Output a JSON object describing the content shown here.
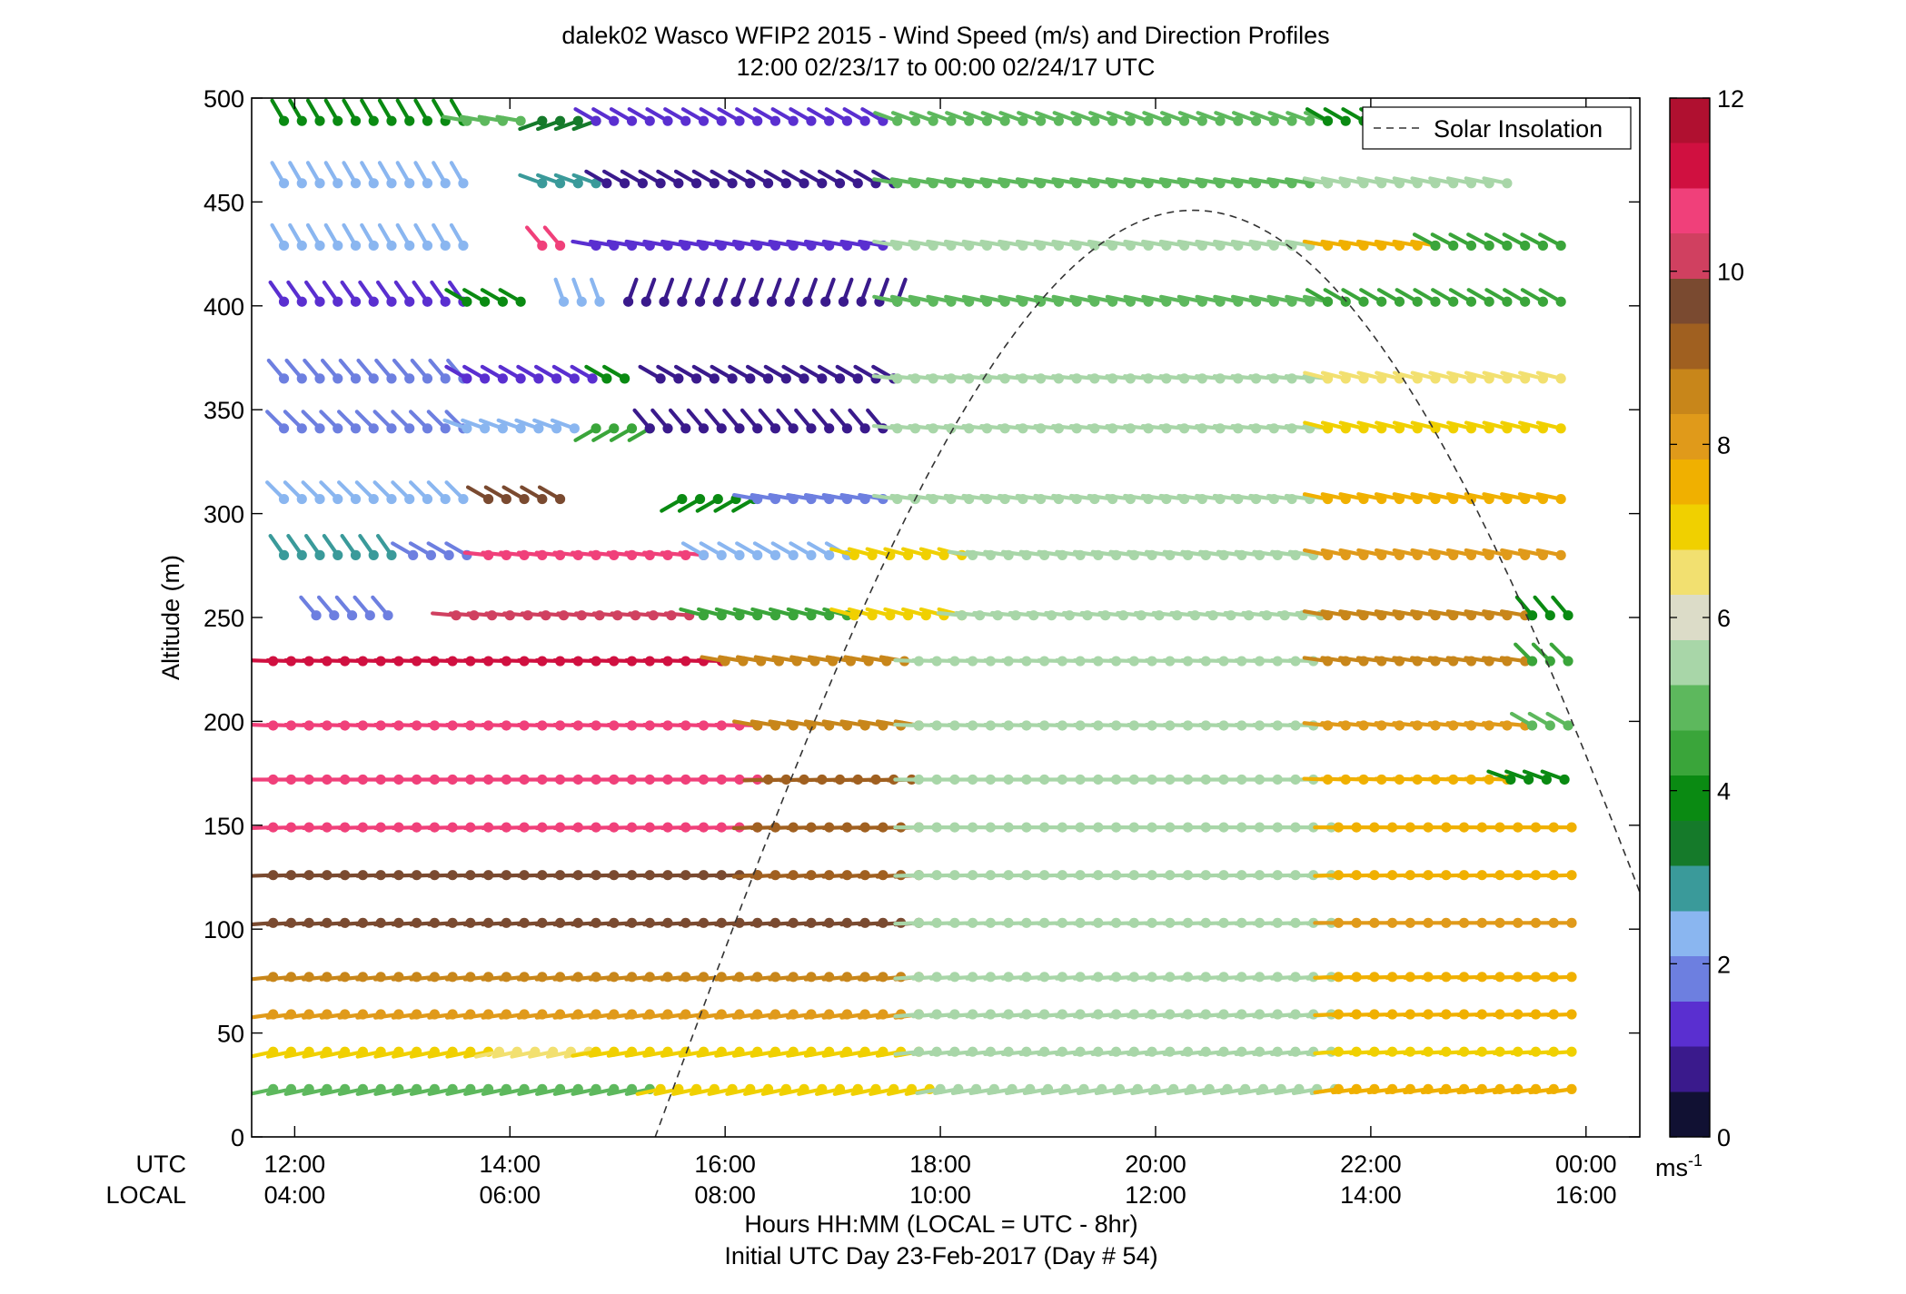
{
  "chart_data": {
    "type": "wind-barb-profile",
    "title": "dalek02 Wasco WFIP2 2015 - Wind Speed (m/s) and Direction Profiles",
    "subtitle": "12:00 02/23/17 to 00:00 02/24/17  UTC",
    "ylabel": "Altitude (m)",
    "xlabel": "Hours HH:MM  (LOCAL = UTC - 8hr)",
    "xlabel2": "Initial UTC Day 23-Feb-2017 (Day # 54)",
    "row_utc": "UTC",
    "row_local": "LOCAL",
    "ylim": [
      0,
      500
    ],
    "xlim_hours": [
      11.6,
      24.5
    ],
    "y_ticks": [
      "0",
      "50",
      "100",
      "150",
      "200",
      "250",
      "300",
      "350",
      "400",
      "450",
      "500"
    ],
    "x_ticks_utc": [
      "12:00",
      "14:00",
      "16:00",
      "18:00",
      "20:00",
      "22:00",
      "00:00"
    ],
    "x_ticks_local": [
      "04:00",
      "06:00",
      "08:00",
      "10:00",
      "12:00",
      "14:00",
      "16:00"
    ],
    "colorbar": {
      "min": 0,
      "max": 12,
      "ticks": [
        "0",
        "2",
        "4",
        "6",
        "8",
        "10",
        "12"
      ],
      "unit_base": "ms",
      "unit_exp": "-1",
      "stops": [
        "#111133",
        "#3a1a8c",
        "#5a2fd0",
        "#6d7fe0",
        "#8ab6f0",
        "#3a9a9a",
        "#157a2a",
        "#0a8a12",
        "#3aa53a",
        "#5db85d",
        "#a8d6a8",
        "#dcdcc8",
        "#f2e070",
        "#f0d000",
        "#f0b000",
        "#e09a1a",
        "#c8861a",
        "#a06020",
        "#7a4a30",
        "#d04060",
        "#f0407a",
        "#d01040",
        "#b01030"
      ]
    },
    "legend": {
      "label": "Solar Insolation",
      "placement": "top-right"
    },
    "solar_insolation": {
      "rise_hour": 15.35,
      "peak_hour": 20.35,
      "peak_altitude": 446,
      "end_hour": 24.5,
      "end_altitude": 105
    },
    "altitudes": [
      23,
      41,
      59,
      77,
      103,
      126,
      149,
      172,
      198,
      229,
      251,
      280,
      307,
      341,
      365,
      402,
      429,
      459,
      489
    ],
    "series": [
      {
        "altitude": 23,
        "segments": [
          {
            "from": 11.8,
            "to": 15.4,
            "speed": 5.0,
            "dir": 258
          },
          {
            "from": 15.4,
            "to": 18.0,
            "speed": 6.8,
            "dir": 258
          },
          {
            "from": 18.0,
            "to": 21.7,
            "speed": 5.3,
            "dir": 260
          },
          {
            "from": 21.7,
            "to": 23.9,
            "speed": 7.4,
            "dir": 262
          }
        ]
      },
      {
        "altitude": 41,
        "segments": [
          {
            "from": 11.8,
            "to": 13.9,
            "speed": 6.9,
            "dir": 258
          },
          {
            "from": 13.9,
            "to": 14.8,
            "speed": 6.3,
            "dir": 258
          },
          {
            "from": 14.8,
            "to": 17.8,
            "speed": 7.1,
            "dir": 260
          },
          {
            "from": 17.8,
            "to": 21.7,
            "speed": 5.4,
            "dir": 264
          },
          {
            "from": 21.7,
            "to": 23.9,
            "speed": 7.3,
            "dir": 266
          }
        ]
      },
      {
        "altitude": 59,
        "segments": [
          {
            "from": 11.8,
            "to": 17.8,
            "speed": 8.1,
            "dir": 262
          },
          {
            "from": 17.8,
            "to": 21.7,
            "speed": 5.3,
            "dir": 265
          },
          {
            "from": 21.7,
            "to": 23.9,
            "speed": 7.5,
            "dir": 268
          }
        ]
      },
      {
        "altitude": 77,
        "segments": [
          {
            "from": 11.8,
            "to": 17.8,
            "speed": 8.6,
            "dir": 264
          },
          {
            "from": 17.8,
            "to": 21.7,
            "speed": 5.4,
            "dir": 266
          },
          {
            "from": 21.7,
            "to": 23.9,
            "speed": 7.6,
            "dir": 268
          }
        ]
      },
      {
        "altitude": 103,
        "segments": [
          {
            "from": 11.8,
            "to": 17.8,
            "speed": 9.4,
            "dir": 266
          },
          {
            "from": 17.8,
            "to": 21.7,
            "speed": 5.5,
            "dir": 268
          },
          {
            "from": 21.7,
            "to": 23.9,
            "speed": 8.1,
            "dir": 270
          }
        ]
      },
      {
        "altitude": 126,
        "segments": [
          {
            "from": 11.8,
            "to": 16.3,
            "speed": 9.6,
            "dir": 268
          },
          {
            "from": 16.3,
            "to": 17.8,
            "speed": 9.0,
            "dir": 266
          },
          {
            "from": 17.8,
            "to": 21.7,
            "speed": 5.4,
            "dir": 268
          },
          {
            "from": 21.7,
            "to": 23.9,
            "speed": 7.8,
            "dir": 268
          }
        ]
      },
      {
        "altitude": 149,
        "segments": [
          {
            "from": 11.8,
            "to": 16.3,
            "speed": 10.5,
            "dir": 268
          },
          {
            "from": 16.3,
            "to": 17.8,
            "speed": 9.0,
            "dir": 268
          },
          {
            "from": 17.8,
            "to": 21.7,
            "speed": 5.5,
            "dir": 270
          },
          {
            "from": 21.7,
            "to": 23.9,
            "speed": 7.8,
            "dir": 270
          }
        ]
      },
      {
        "altitude": 172,
        "segments": [
          {
            "from": 11.8,
            "to": 16.4,
            "speed": 10.7,
            "dir": 270
          },
          {
            "from": 16.4,
            "to": 17.8,
            "speed": 8.9,
            "dir": 268
          },
          {
            "from": 17.8,
            "to": 21.6,
            "speed": 5.5,
            "dir": 270
          },
          {
            "from": 21.6,
            "to": 23.3,
            "speed": 7.8,
            "dir": 272
          },
          {
            "from": 23.3,
            "to": 23.9,
            "speed": 4.0,
            "dir": 290
          }
        ]
      },
      {
        "altitude": 198,
        "segments": [
          {
            "from": 11.8,
            "to": 16.3,
            "speed": 10.8,
            "dir": 272
          },
          {
            "from": 16.3,
            "to": 17.8,
            "speed": 8.5,
            "dir": 280
          },
          {
            "from": 17.8,
            "to": 21.6,
            "speed": 5.5,
            "dir": 272
          },
          {
            "from": 21.6,
            "to": 23.5,
            "speed": 8.1,
            "dir": 276
          },
          {
            "from": 23.5,
            "to": 23.9,
            "speed": 5.0,
            "dir": 300
          }
        ]
      },
      {
        "altitude": 229,
        "segments": [
          {
            "from": 11.8,
            "to": 16.0,
            "speed": 11.2,
            "dir": 272
          },
          {
            "from": 16.0,
            "to": 17.8,
            "speed": 8.6,
            "dir": 280
          },
          {
            "from": 17.8,
            "to": 21.6,
            "speed": 5.5,
            "dir": 272
          },
          {
            "from": 21.6,
            "to": 23.5,
            "speed": 8.5,
            "dir": 278
          },
          {
            "from": 23.5,
            "to": 23.9,
            "speed": 4.5,
            "dir": 315
          }
        ]
      },
      {
        "altitude": 251,
        "segments": [
          {
            "from": 12.2,
            "to": 12.9,
            "speed": 2.0,
            "dir": 320
          },
          {
            "from": 13.5,
            "to": 15.8,
            "speed": 10.4,
            "dir": 275
          },
          {
            "from": 15.8,
            "to": 17.2,
            "speed": 4.6,
            "dir": 285
          },
          {
            "from": 17.2,
            "to": 18.2,
            "speed": 6.9,
            "dir": 285
          },
          {
            "from": 18.2,
            "to": 21.6,
            "speed": 5.4,
            "dir": 276
          },
          {
            "from": 21.6,
            "to": 23.5,
            "speed": 8.8,
            "dir": 280
          },
          {
            "from": 23.5,
            "to": 23.9,
            "speed": 4.0,
            "dir": 320
          }
        ]
      },
      {
        "altitude": 280,
        "segments": [
          {
            "from": 11.9,
            "to": 12.9,
            "speed": 2.8,
            "dir": 325
          },
          {
            "from": 13.1,
            "to": 13.6,
            "speed": 2.0,
            "dir": 300
          },
          {
            "from": 13.8,
            "to": 15.8,
            "speed": 10.8,
            "dir": 276
          },
          {
            "from": 15.8,
            "to": 17.2,
            "speed": 2.6,
            "dir": 300
          },
          {
            "from": 17.2,
            "to": 18.3,
            "speed": 6.8,
            "dir": 285
          },
          {
            "from": 18.3,
            "to": 21.6,
            "speed": 5.5,
            "dir": 278
          },
          {
            "from": 21.6,
            "to": 23.9,
            "speed": 8.2,
            "dir": 282
          }
        ]
      },
      {
        "altitude": 307,
        "segments": [
          {
            "from": 11.9,
            "to": 13.6,
            "speed": 2.3,
            "dir": 315
          },
          {
            "from": 13.8,
            "to": 14.6,
            "speed": 9.9,
            "dir": 300
          },
          {
            "from": 15.6,
            "to": 16.3,
            "speed": 4.0,
            "dir": 240
          },
          {
            "from": 16.3,
            "to": 17.6,
            "speed": 2.0,
            "dir": 280
          },
          {
            "from": 17.6,
            "to": 21.6,
            "speed": 5.5,
            "dir": 278
          },
          {
            "from": 21.6,
            "to": 23.9,
            "speed": 7.5,
            "dir": 282
          }
        ]
      },
      {
        "altitude": 341,
        "segments": [
          {
            "from": 11.9,
            "to": 13.6,
            "speed": 1.9,
            "dir": 315
          },
          {
            "from": 13.6,
            "to": 14.6,
            "speed": 2.2,
            "dir": 290
          },
          {
            "from": 14.8,
            "to": 15.3,
            "speed": 4.2,
            "dir": 240
          },
          {
            "from": 15.3,
            "to": 17.6,
            "speed": 1.0,
            "dir": 320
          },
          {
            "from": 17.6,
            "to": 21.6,
            "speed": 5.5,
            "dir": 276
          },
          {
            "from": 21.6,
            "to": 23.9,
            "speed": 7.2,
            "dir": 284
          }
        ]
      },
      {
        "altitude": 365,
        "segments": [
          {
            "from": 11.9,
            "to": 13.6,
            "speed": 1.8,
            "dir": 320
          },
          {
            "from": 13.6,
            "to": 14.9,
            "speed": 1.5,
            "dir": 300
          },
          {
            "from": 14.9,
            "to": 15.2,
            "speed": 4.0,
            "dir": 300
          },
          {
            "from": 15.4,
            "to": 17.6,
            "speed": 0.7,
            "dir": 300
          },
          {
            "from": 17.6,
            "to": 21.6,
            "speed": 5.5,
            "dir": 276
          },
          {
            "from": 21.6,
            "to": 23.9,
            "speed": 6.5,
            "dir": 284
          }
        ]
      },
      {
        "altitude": 402,
        "segments": [
          {
            "from": 11.9,
            "to": 13.6,
            "speed": 1.5,
            "dir": 325
          },
          {
            "from": 13.6,
            "to": 14.1,
            "speed": 3.9,
            "dir": 300
          },
          {
            "from": 14.5,
            "to": 14.9,
            "speed": 2.2,
            "dir": 340
          },
          {
            "from": 15.1,
            "to": 17.6,
            "speed": 0.6,
            "dir": 20
          },
          {
            "from": 17.6,
            "to": 21.6,
            "speed": 5.0,
            "dir": 282
          },
          {
            "from": 21.6,
            "to": 23.9,
            "speed": 4.2,
            "dir": 300
          }
        ]
      },
      {
        "altitude": 429,
        "segments": [
          {
            "from": 11.9,
            "to": 13.6,
            "speed": 2.6,
            "dir": 330
          },
          {
            "from": 14.3,
            "to": 14.5,
            "speed": 10.6,
            "dir": 320
          },
          {
            "from": 14.8,
            "to": 17.6,
            "speed": 1.3,
            "dir": 280
          },
          {
            "from": 17.6,
            "to": 21.6,
            "speed": 5.5,
            "dir": 280
          },
          {
            "from": 21.6,
            "to": 22.6,
            "speed": 7.6,
            "dir": 280
          },
          {
            "from": 22.6,
            "to": 23.9,
            "speed": 4.6,
            "dir": 298
          }
        ]
      },
      {
        "altitude": 459,
        "segments": [
          {
            "from": 11.9,
            "to": 13.6,
            "speed": 2.5,
            "dir": 330
          },
          {
            "from": 14.3,
            "to": 14.9,
            "speed": 3.0,
            "dir": 290
          },
          {
            "from": 14.9,
            "to": 17.6,
            "speed": 0.8,
            "dir": 300
          },
          {
            "from": 17.6,
            "to": 21.6,
            "speed": 5.0,
            "dir": 280
          },
          {
            "from": 21.6,
            "to": 23.4,
            "speed": 5.4,
            "dir": 282
          }
        ]
      },
      {
        "altitude": 489,
        "segments": [
          {
            "from": 11.9,
            "to": 13.6,
            "speed": 4.0,
            "dir": 330
          },
          {
            "from": 13.6,
            "to": 14.2,
            "speed": 5.2,
            "dir": 280
          },
          {
            "from": 14.3,
            "to": 14.8,
            "speed": 3.2,
            "dir": 250
          },
          {
            "from": 14.8,
            "to": 17.6,
            "speed": 1.2,
            "dir": 300
          },
          {
            "from": 17.6,
            "to": 21.6,
            "speed": 5.2,
            "dir": 290
          },
          {
            "from": 21.6,
            "to": 22.6,
            "speed": 3.8,
            "dir": 300
          }
        ]
      }
    ]
  }
}
